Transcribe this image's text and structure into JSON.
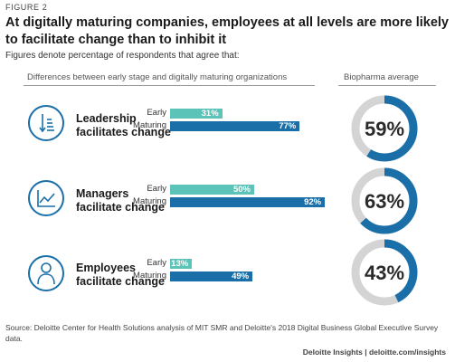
{
  "figure_label": "FIGURE 2",
  "title": "At digitally maturing companies, employees at all levels are more likely to facilitate change than to inhibit it",
  "subtitle": "Figures denote percentage of respondents that agree that:",
  "col_left_header": "Differences between early stage and digitally maturing organizations",
  "col_right_header": "Biopharma average",
  "colors": {
    "early": "#5cc3b8",
    "maturing": "#1a6fa8",
    "ring_track": "#d4d4d4",
    "icon": "#1a6fa8"
  },
  "chart_data": {
    "type": "bar",
    "orientation": "horizontal",
    "categories": [
      "Leadership facilitates change",
      "Managers facilitate change",
      "Employees facilitate change"
    ],
    "series": [
      {
        "name": "Early",
        "values": [
          31,
          50,
          13
        ]
      },
      {
        "name": "Maturing",
        "values": [
          77,
          92,
          49
        ]
      }
    ],
    "value_labels": {
      "early": [
        "31%",
        "50%",
        "13%"
      ],
      "maturing": [
        "77%",
        "92%",
        "49%"
      ]
    },
    "xlim": [
      0,
      100
    ],
    "averages": [
      59,
      63,
      43
    ],
    "average_labels": [
      "59%",
      "63%",
      "43%"
    ]
  },
  "rows": [
    {
      "label_line1": "Leadership",
      "label_line2": "facilitates change",
      "icon": "org-chart-icon"
    },
    {
      "label_line1": "Managers",
      "label_line2": "facilitate change",
      "icon": "line-chart-icon"
    },
    {
      "label_line1": "Employees",
      "label_line2": "facilitate change",
      "icon": "person-icon"
    }
  ],
  "source": "Source: Deloitte Center for Health Solutions analysis of MIT SMR and Deloitte's 2018 Digital Business Global Executive Survey data.",
  "credit": "Deloitte Insights | deloitte.com/insights"
}
